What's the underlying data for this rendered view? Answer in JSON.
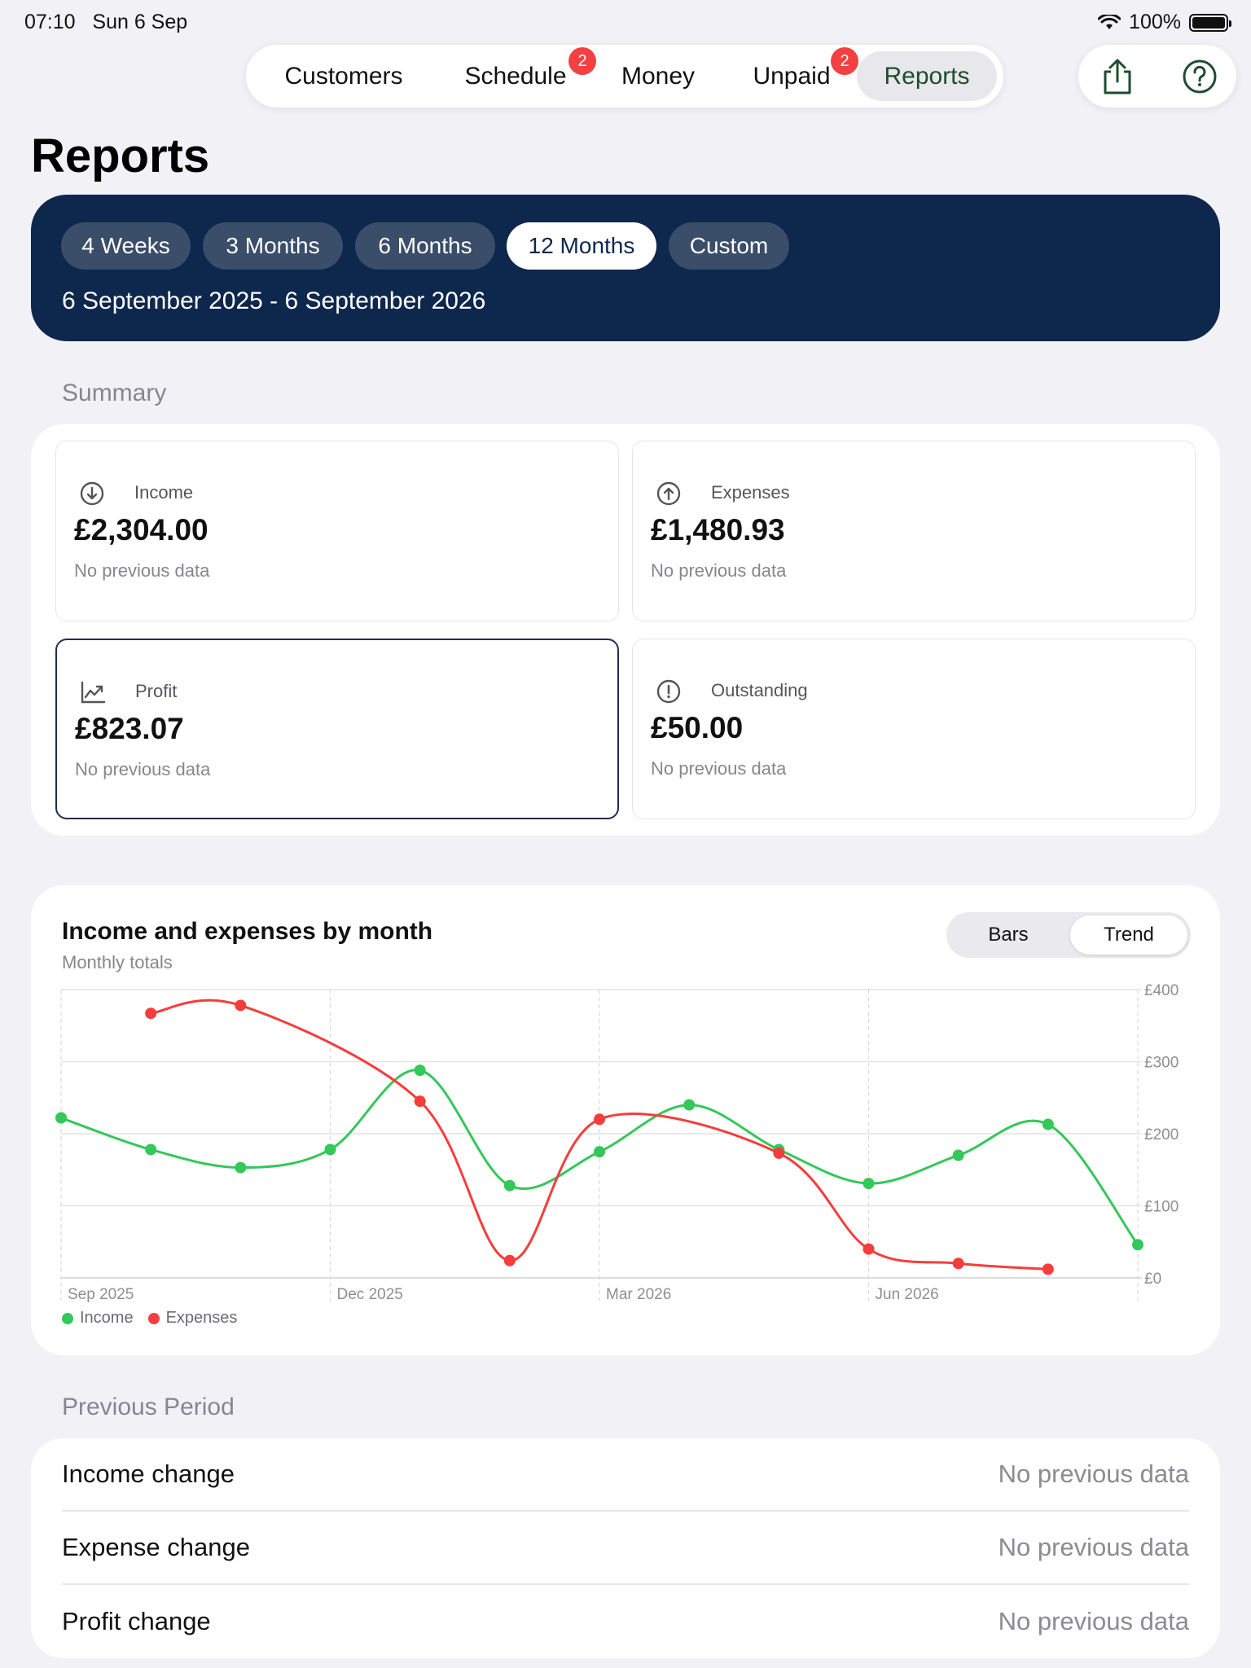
{
  "status": {
    "time": "07:10",
    "date": "Sun 6 Sep",
    "battery": "100%"
  },
  "nav": {
    "tabs": [
      {
        "label": "Customers",
        "badge": ""
      },
      {
        "label": "Schedule",
        "badge": "2"
      },
      {
        "label": "Money",
        "badge": ""
      },
      {
        "label": "Unpaid",
        "badge": "2"
      },
      {
        "label": "Reports",
        "badge": ""
      }
    ],
    "active": "Reports",
    "actions": [
      "share-icon",
      "help-icon"
    ]
  },
  "page": {
    "title": "Reports"
  },
  "range": {
    "options": [
      "4 Weeks",
      "3 Months",
      "6 Months",
      "12 Months",
      "Custom"
    ],
    "selected": "12 Months",
    "dates": "6 September 2025 - 6 September 2026"
  },
  "summary": {
    "heading": "Summary",
    "tiles": [
      {
        "label": "Income",
        "value": "£2,304.00",
        "note": "No previous data",
        "icon": "arrow-down-circle-icon"
      },
      {
        "label": "Expenses",
        "value": "£1,480.93",
        "note": "No previous data",
        "icon": "arrow-up-circle-icon"
      },
      {
        "label": "Profit",
        "value": "£823.07",
        "note": "No previous data",
        "icon": "trend-chart-icon"
      },
      {
        "label": "Outstanding",
        "value": "£50.00",
        "note": "No previous data",
        "icon": "exclamation-circle-icon"
      }
    ],
    "selected": "Profit"
  },
  "chart": {
    "title": "Income and expenses by month",
    "subtitle": "Monthly totals",
    "toggle": [
      "Bars",
      "Trend"
    ],
    "toggle_selected": "Trend"
  },
  "chart_data": {
    "type": "line",
    "x": [
      "Sep 2025",
      "Oct 2025",
      "Nov 2025",
      "Dec 2025",
      "Jan 2026",
      "Feb 2026",
      "Mar 2026",
      "Apr 2026",
      "May 2026",
      "Jun 2026",
      "Jul 2026",
      "Aug 2026",
      "Sep 2026"
    ],
    "xticks": [
      "Sep 2025",
      "Dec 2025",
      "Mar 2026",
      "Jun 2026"
    ],
    "yticks": [
      "£0",
      "£100",
      "£200",
      "£300",
      "£400"
    ],
    "ylim": [
      0,
      400
    ],
    "grid": true,
    "legend_position": "bottom-left",
    "series": [
      {
        "name": "Income",
        "color": "#34c759",
        "values": [
          222,
          178,
          153,
          178,
          288,
          128,
          175,
          240,
          178,
          131,
          170,
          213,
          46
        ]
      },
      {
        "name": "Expenses",
        "color": "#f63d3d",
        "values": [
          null,
          367,
          378,
          null,
          245,
          24,
          220,
          null,
          173,
          40,
          20,
          12,
          null
        ]
      }
    ]
  },
  "previous": {
    "heading": "Previous Period",
    "rows": [
      {
        "label": "Income change",
        "value": "No previous data"
      },
      {
        "label": "Expense change",
        "value": "No previous data"
      },
      {
        "label": "Profit change",
        "value": "No previous data"
      }
    ]
  }
}
